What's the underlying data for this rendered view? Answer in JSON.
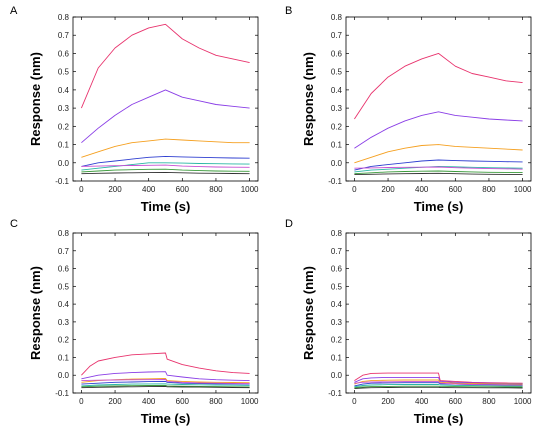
{
  "chart_data": [
    {
      "type": "line",
      "panel_label": "A",
      "xlabel": "Time (s)",
      "ylabel": "Response (nm)",
      "xlim": [
        -50,
        1050
      ],
      "ylim": [
        -0.1,
        0.8
      ],
      "xticks": [
        0,
        200,
        400,
        600,
        800,
        1000
      ],
      "yticks": [
        -0.1,
        0.0,
        0.1,
        0.2,
        0.3,
        0.4,
        0.5,
        0.6,
        0.7,
        0.8
      ],
      "series": [
        {
          "color": "#e8336d",
          "x": [
            0,
            100,
            200,
            300,
            400,
            500,
            600,
            700,
            800,
            900,
            1000
          ],
          "y": [
            0.3,
            0.52,
            0.63,
            0.7,
            0.74,
            0.76,
            0.68,
            0.63,
            0.59,
            0.57,
            0.55
          ]
        },
        {
          "color": "#8a3ee6",
          "x": [
            0,
            100,
            200,
            300,
            400,
            500,
            600,
            700,
            800,
            900,
            1000
          ],
          "y": [
            0.11,
            0.19,
            0.26,
            0.32,
            0.36,
            0.4,
            0.36,
            0.34,
            0.32,
            0.31,
            0.3
          ]
        },
        {
          "color": "#f5a020",
          "x": [
            0,
            100,
            200,
            300,
            400,
            500,
            600,
            700,
            800,
            900,
            1000
          ],
          "y": [
            0.03,
            0.06,
            0.09,
            0.11,
            0.12,
            0.13,
            0.125,
            0.12,
            0.115,
            0.11,
            0.11
          ]
        },
        {
          "color": "#2f3fd0",
          "x": [
            0,
            100,
            200,
            300,
            400,
            500,
            600,
            700,
            800,
            900,
            1000
          ],
          "y": [
            -0.02,
            0.0,
            0.01,
            0.02,
            0.03,
            0.035,
            0.032,
            0.03,
            0.028,
            0.026,
            0.025
          ]
        },
        {
          "color": "#2bb7a5",
          "x": [
            0,
            100,
            200,
            300,
            400,
            500,
            600,
            700,
            800,
            900,
            1000
          ],
          "y": [
            -0.04,
            -0.03,
            -0.02,
            -0.01,
            0.0,
            0.0,
            -0.002,
            -0.004,
            -0.005,
            -0.006,
            -0.007
          ]
        },
        {
          "color": "#c74fd3",
          "x": [
            0,
            100,
            200,
            300,
            400,
            500,
            600,
            700,
            800,
            900,
            1000
          ],
          "y": [
            -0.02,
            -0.018,
            -0.016,
            -0.015,
            -0.014,
            -0.013,
            -0.018,
            -0.021,
            -0.023,
            -0.024,
            -0.025
          ]
        },
        {
          "color": "#3a9a3a",
          "x": [
            0,
            100,
            200,
            300,
            400,
            500,
            600,
            700,
            800,
            900,
            1000
          ],
          "y": [
            -0.05,
            -0.045,
            -0.04,
            -0.038,
            -0.036,
            -0.035,
            -0.04,
            -0.043,
            -0.045,
            -0.046,
            -0.047
          ]
        },
        {
          "color": "#333333",
          "x": [
            0,
            100,
            200,
            300,
            400,
            500,
            600,
            700,
            800,
            900,
            1000
          ],
          "y": [
            -0.06,
            -0.058,
            -0.056,
            -0.055,
            -0.054,
            -0.053,
            -0.055,
            -0.057,
            -0.058,
            -0.059,
            -0.06
          ]
        }
      ]
    },
    {
      "type": "line",
      "panel_label": "B",
      "xlabel": "Time (s)",
      "ylabel": "Response (nm)",
      "xlim": [
        -50,
        1050
      ],
      "ylim": [
        -0.1,
        0.8
      ],
      "xticks": [
        0,
        200,
        400,
        600,
        800,
        1000
      ],
      "yticks": [
        -0.1,
        0.0,
        0.1,
        0.2,
        0.3,
        0.4,
        0.5,
        0.6,
        0.7,
        0.8
      ],
      "series": [
        {
          "color": "#e8336d",
          "x": [
            0,
            100,
            200,
            300,
            400,
            500,
            600,
            700,
            800,
            900,
            1000
          ],
          "y": [
            0.24,
            0.38,
            0.47,
            0.53,
            0.57,
            0.6,
            0.53,
            0.49,
            0.47,
            0.45,
            0.44
          ]
        },
        {
          "color": "#8a3ee6",
          "x": [
            0,
            100,
            200,
            300,
            400,
            500,
            600,
            700,
            800,
            900,
            1000
          ],
          "y": [
            0.08,
            0.14,
            0.19,
            0.23,
            0.26,
            0.28,
            0.26,
            0.25,
            0.24,
            0.235,
            0.23
          ]
        },
        {
          "color": "#f5a020",
          "x": [
            0,
            100,
            200,
            300,
            400,
            500,
            600,
            700,
            800,
            900,
            1000
          ],
          "y": [
            0.0,
            0.03,
            0.06,
            0.08,
            0.095,
            0.1,
            0.09,
            0.085,
            0.08,
            0.075,
            0.07
          ]
        },
        {
          "color": "#2f3fd0",
          "x": [
            0,
            100,
            200,
            300,
            400,
            500,
            600,
            700,
            800,
            900,
            1000
          ],
          "y": [
            -0.04,
            -0.02,
            -0.01,
            0.0,
            0.01,
            0.015,
            0.012,
            0.01,
            0.008,
            0.006,
            0.005
          ]
        },
        {
          "color": "#2bb7a5",
          "x": [
            0,
            100,
            200,
            300,
            400,
            500,
            600,
            700,
            800,
            900,
            1000
          ],
          "y": [
            -0.05,
            -0.04,
            -0.035,
            -0.03,
            -0.025,
            -0.02,
            -0.022,
            -0.025,
            -0.027,
            -0.028,
            -0.03
          ]
        },
        {
          "color": "#c74fd3",
          "x": [
            0,
            100,
            200,
            300,
            400,
            500,
            600,
            700,
            800,
            900,
            1000
          ],
          "y": [
            -0.03,
            -0.028,
            -0.026,
            -0.025,
            -0.024,
            -0.023,
            -0.027,
            -0.03,
            -0.032,
            -0.033,
            -0.035
          ]
        },
        {
          "color": "#3a9a3a",
          "x": [
            0,
            100,
            200,
            300,
            400,
            500,
            600,
            700,
            800,
            900,
            1000
          ],
          "y": [
            -0.06,
            -0.055,
            -0.05,
            -0.048,
            -0.046,
            -0.045,
            -0.048,
            -0.05,
            -0.052,
            -0.053,
            -0.054
          ]
        },
        {
          "color": "#333333",
          "x": [
            0,
            100,
            200,
            300,
            400,
            500,
            600,
            700,
            800,
            900,
            1000
          ],
          "y": [
            -0.065,
            -0.063,
            -0.061,
            -0.06,
            -0.059,
            -0.058,
            -0.06,
            -0.062,
            -0.063,
            -0.064,
            -0.065
          ]
        }
      ]
    },
    {
      "type": "line",
      "panel_label": "C",
      "xlabel": "Time (s)",
      "ylabel": "Response (nm)",
      "xlim": [
        -50,
        1050
      ],
      "ylim": [
        -0.1,
        0.8
      ],
      "xticks": [
        0,
        200,
        400,
        600,
        800,
        1000
      ],
      "yticks": [
        -0.1,
        0.0,
        0.1,
        0.2,
        0.3,
        0.4,
        0.5,
        0.6,
        0.7,
        0.8
      ],
      "series": [
        {
          "color": "#e8336d",
          "x": [
            0,
            50,
            100,
            200,
            300,
            400,
            500,
            510,
            600,
            700,
            800,
            900,
            1000
          ],
          "y": [
            0.0,
            0.05,
            0.08,
            0.1,
            0.115,
            0.12,
            0.125,
            0.09,
            0.06,
            0.04,
            0.025,
            0.015,
            0.01
          ]
        },
        {
          "color": "#8a3ee6",
          "x": [
            0,
            100,
            200,
            300,
            400,
            500,
            510,
            600,
            700,
            800,
            900,
            1000
          ],
          "y": [
            -0.02,
            0.0,
            0.01,
            0.015,
            0.018,
            0.02,
            0.0,
            -0.01,
            -0.02,
            -0.025,
            -0.028,
            -0.03
          ]
        },
        {
          "color": "#f5a020",
          "x": [
            0,
            100,
            200,
            300,
            400,
            500,
            510,
            600,
            700,
            800,
            900,
            1000
          ],
          "y": [
            -0.04,
            -0.03,
            -0.025,
            -0.022,
            -0.02,
            -0.018,
            -0.03,
            -0.035,
            -0.038,
            -0.04,
            -0.041,
            -0.042
          ]
        },
        {
          "color": "#2f3fd0",
          "x": [
            0,
            100,
            200,
            300,
            400,
            500,
            510,
            600,
            700,
            800,
            900,
            1000
          ],
          "y": [
            -0.05,
            -0.045,
            -0.04,
            -0.038,
            -0.036,
            -0.035,
            -0.04,
            -0.045,
            -0.047,
            -0.048,
            -0.049,
            -0.05
          ]
        },
        {
          "color": "#2bb7a5",
          "x": [
            0,
            100,
            200,
            300,
            400,
            500,
            510,
            600,
            700,
            800,
            900,
            1000
          ],
          "y": [
            -0.06,
            -0.055,
            -0.052,
            -0.05,
            -0.049,
            -0.048,
            -0.05,
            -0.052,
            -0.054,
            -0.055,
            -0.056,
            -0.057
          ]
        },
        {
          "color": "#c74fd3",
          "x": [
            0,
            100,
            200,
            300,
            400,
            500,
            510,
            600,
            700,
            800,
            900,
            1000
          ],
          "y": [
            -0.03,
            -0.028,
            -0.027,
            -0.026,
            -0.025,
            -0.024,
            -0.035,
            -0.04,
            -0.043,
            -0.045,
            -0.046,
            -0.047
          ]
        },
        {
          "color": "#3a9a3a",
          "x": [
            0,
            100,
            200,
            300,
            400,
            500,
            510,
            600,
            700,
            800,
            900,
            1000
          ],
          "y": [
            -0.065,
            -0.062,
            -0.06,
            -0.059,
            -0.058,
            -0.057,
            -0.06,
            -0.062,
            -0.063,
            -0.064,
            -0.065,
            -0.066
          ]
        },
        {
          "color": "#333333",
          "x": [
            0,
            100,
            200,
            300,
            400,
            500,
            510,
            600,
            700,
            800,
            900,
            1000
          ],
          "y": [
            -0.07,
            -0.068,
            -0.066,
            -0.065,
            -0.064,
            -0.063,
            -0.065,
            -0.066,
            -0.067,
            -0.068,
            -0.069,
            -0.07
          ]
        }
      ]
    },
    {
      "type": "line",
      "panel_label": "D",
      "xlabel": "Time (s)",
      "ylabel": "Response (nm)",
      "xlim": [
        -50,
        1050
      ],
      "ylim": [
        -0.1,
        0.8
      ],
      "xticks": [
        0,
        200,
        400,
        600,
        800,
        1000
      ],
      "yticks": [
        -0.1,
        0.0,
        0.1,
        0.2,
        0.3,
        0.4,
        0.5,
        0.6,
        0.7,
        0.8
      ],
      "series": [
        {
          "color": "#e8336d",
          "x": [
            0,
            50,
            100,
            200,
            300,
            400,
            500,
            510,
            600,
            700,
            800,
            900,
            1000
          ],
          "y": [
            -0.03,
            0.0,
            0.01,
            0.012,
            0.012,
            0.012,
            0.012,
            -0.03,
            -0.035,
            -0.04,
            -0.042,
            -0.044,
            -0.045
          ]
        },
        {
          "color": "#8a3ee6",
          "x": [
            0,
            50,
            100,
            200,
            300,
            400,
            500,
            510,
            600,
            700,
            800,
            900,
            1000
          ],
          "y": [
            -0.04,
            -0.02,
            -0.015,
            -0.012,
            -0.012,
            -0.012,
            -0.012,
            -0.035,
            -0.04,
            -0.043,
            -0.045,
            -0.046,
            -0.047
          ]
        },
        {
          "color": "#f5a020",
          "x": [
            0,
            50,
            100,
            200,
            300,
            400,
            500,
            510,
            600,
            700,
            800,
            900,
            1000
          ],
          "y": [
            -0.05,
            -0.035,
            -0.03,
            -0.028,
            -0.027,
            -0.027,
            -0.027,
            -0.04,
            -0.045,
            -0.047,
            -0.048,
            -0.049,
            -0.05
          ]
        },
        {
          "color": "#2f3fd0",
          "x": [
            0,
            50,
            100,
            200,
            300,
            400,
            500,
            510,
            600,
            700,
            800,
            900,
            1000
          ],
          "y": [
            -0.06,
            -0.05,
            -0.045,
            -0.043,
            -0.042,
            -0.042,
            -0.042,
            -0.048,
            -0.05,
            -0.052,
            -0.053,
            -0.054,
            -0.055
          ]
        },
        {
          "color": "#2bb7a5",
          "x": [
            0,
            50,
            100,
            200,
            300,
            400,
            500,
            510,
            600,
            700,
            800,
            900,
            1000
          ],
          "y": [
            -0.065,
            -0.058,
            -0.055,
            -0.053,
            -0.052,
            -0.052,
            -0.052,
            -0.055,
            -0.057,
            -0.058,
            -0.059,
            -0.06,
            -0.06
          ]
        },
        {
          "color": "#c74fd3",
          "x": [
            0,
            50,
            100,
            200,
            300,
            400,
            500,
            510,
            600,
            700,
            800,
            900,
            1000
          ],
          "y": [
            -0.045,
            -0.04,
            -0.038,
            -0.037,
            -0.036,
            -0.036,
            -0.036,
            -0.045,
            -0.05,
            -0.052,
            -0.054,
            -0.055,
            -0.056
          ]
        },
        {
          "color": "#3a9a3a",
          "x": [
            0,
            50,
            100,
            200,
            300,
            400,
            500,
            510,
            600,
            700,
            800,
            900,
            1000
          ],
          "y": [
            -0.07,
            -0.066,
            -0.064,
            -0.063,
            -0.062,
            -0.062,
            -0.062,
            -0.063,
            -0.064,
            -0.065,
            -0.065,
            -0.066,
            -0.066
          ]
        },
        {
          "color": "#333333",
          "x": [
            0,
            50,
            100,
            200,
            300,
            400,
            500,
            510,
            600,
            700,
            800,
            900,
            1000
          ],
          "y": [
            -0.075,
            -0.072,
            -0.07,
            -0.069,
            -0.068,
            -0.068,
            -0.068,
            -0.069,
            -0.07,
            -0.07,
            -0.071,
            -0.071,
            -0.072
          ]
        }
      ]
    }
  ]
}
